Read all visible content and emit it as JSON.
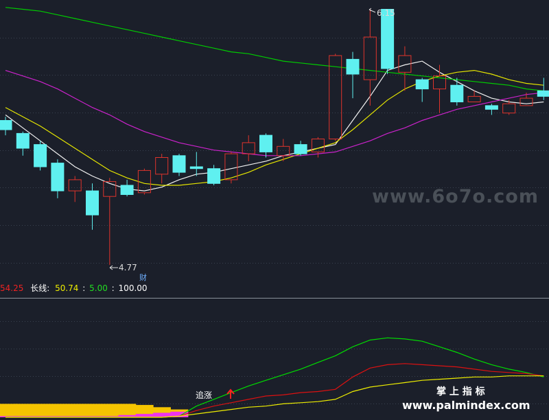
{
  "colors": {
    "background": "#1b1f2a",
    "grid": "#3a4250",
    "separator": "#8a909a",
    "up_candle": "#e0342c",
    "down_candle": "#5ff0f0",
    "ma_white": "#f2f2f2",
    "ma_yellow": "#e6e600",
    "ma_green": "#00cc00",
    "ma_magenta": "#cc22cc",
    "ind_green": "#00dd00",
    "ind_red": "#dd1111",
    "ind_yellow": "#eeee00",
    "volume_bar": "#f5c400",
    "volume_pink": "#ee33ee",
    "annotation": "#dddddd",
    "arrow": "#ff2020"
  },
  "price_panel": {
    "high_label": "6.15",
    "low_label": "4.77",
    "flag_char": "财"
  },
  "indicator_header": {
    "value1": "54.25",
    "label2": "长线:",
    "value2": "50.74",
    "value3": "5.00",
    "value4": "100.00"
  },
  "indicator_panel": {
    "signal_text": "追涨",
    "signal_icon": "up-arrow-icon"
  },
  "watermarks": {
    "site1": "www.6o7o.com",
    "brand": "掌 上 指 标",
    "site2": "www.palmindex.com"
  },
  "chart_data": [
    {
      "type": "candlestick",
      "title": "",
      "ylim": [
        4.7,
        6.2
      ],
      "grid": true,
      "annotations": [
        {
          "x": 21,
          "y": 6.15,
          "text": "6.15",
          "kind": "high"
        },
        {
          "x": 5,
          "y": 4.77,
          "text": "4.77",
          "kind": "low"
        }
      ],
      "candles": [
        {
          "x": 0,
          "open": 5.55,
          "close": 5.5,
          "high": 5.57,
          "low": 5.47
        },
        {
          "x": 1,
          "open": 5.48,
          "close": 5.4,
          "high": 5.49,
          "low": 5.36
        },
        {
          "x": 2,
          "open": 5.42,
          "close": 5.3,
          "high": 5.44,
          "low": 5.28
        },
        {
          "x": 3,
          "open": 5.32,
          "close": 5.17,
          "high": 5.34,
          "low": 5.13
        },
        {
          "x": 4,
          "open": 5.17,
          "close": 5.23,
          "high": 5.25,
          "low": 5.11
        },
        {
          "x": 5,
          "open": 5.17,
          "close": 5.04,
          "high": 5.21,
          "low": 4.96
        },
        {
          "x": 6,
          "open": 5.14,
          "close": 5.22,
          "high": 5.24,
          "low": 4.77
        },
        {
          "x": 7,
          "open": 5.2,
          "close": 5.15,
          "high": 5.23,
          "low": 5.14
        },
        {
          "x": 8,
          "open": 5.16,
          "close": 5.28,
          "high": 5.29,
          "low": 5.15
        },
        {
          "x": 9,
          "open": 5.26,
          "close": 5.35,
          "high": 5.37,
          "low": 5.21
        },
        {
          "x": 10,
          "open": 5.36,
          "close": 5.27,
          "high": 5.37,
          "low": 5.25
        },
        {
          "x": 11,
          "open": 5.3,
          "close": 5.29,
          "high": 5.38,
          "low": 5.25
        },
        {
          "x": 12,
          "open": 5.29,
          "close": 5.21,
          "high": 5.31,
          "low": 5.2
        },
        {
          "x": 13,
          "open": 5.23,
          "close": 5.37,
          "high": 5.38,
          "low": 5.21
        },
        {
          "x": 14,
          "open": 5.37,
          "close": 5.43,
          "high": 5.47,
          "low": 5.33
        },
        {
          "x": 15,
          "open": 5.47,
          "close": 5.38,
          "high": 5.48,
          "low": 5.35
        },
        {
          "x": 16,
          "open": 5.36,
          "close": 5.41,
          "high": 5.45,
          "low": 5.33
        },
        {
          "x": 17,
          "open": 5.42,
          "close": 5.37,
          "high": 5.44,
          "low": 5.36
        },
        {
          "x": 18,
          "open": 5.38,
          "close": 5.45,
          "high": 5.46,
          "low": 5.35
        },
        {
          "x": 19,
          "open": 5.45,
          "close": 5.9,
          "high": 5.91,
          "low": 5.44
        },
        {
          "x": 20,
          "open": 5.88,
          "close": 5.8,
          "high": 5.92,
          "low": 5.67
        },
        {
          "x": 21,
          "open": 5.77,
          "close": 6.0,
          "high": 6.15,
          "low": 5.63
        },
        {
          "x": 22,
          "open": 6.15,
          "close": 5.83,
          "high": 6.15,
          "low": 5.8
        },
        {
          "x": 23,
          "open": 5.81,
          "close": 5.9,
          "high": 5.95,
          "low": 5.71
        },
        {
          "x": 24,
          "open": 5.77,
          "close": 5.72,
          "high": 5.78,
          "low": 5.65
        },
        {
          "x": 25,
          "open": 5.72,
          "close": 5.79,
          "high": 5.85,
          "low": 5.59
        },
        {
          "x": 26,
          "open": 5.74,
          "close": 5.65,
          "high": 5.78,
          "low": 5.63
        },
        {
          "x": 27,
          "open": 5.65,
          "close": 5.68,
          "high": 5.71,
          "low": 5.65
        },
        {
          "x": 28,
          "open": 5.63,
          "close": 5.61,
          "high": 5.64,
          "low": 5.58
        },
        {
          "x": 29,
          "open": 5.59,
          "close": 5.64,
          "high": 5.66,
          "low": 5.58
        },
        {
          "x": 30,
          "open": 5.63,
          "close": 5.67,
          "high": 5.7,
          "low": 5.63
        },
        {
          "x": 31,
          "open": 5.71,
          "close": 5.68,
          "high": 5.78,
          "low": 5.66
        }
      ],
      "ma_lines": [
        {
          "color": "ma_white",
          "values": [
            5.58,
            5.51,
            5.44,
            5.37,
            5.3,
            5.25,
            5.21,
            5.18,
            5.17,
            5.19,
            5.23,
            5.26,
            5.27,
            5.29,
            5.31,
            5.33,
            5.36,
            5.38,
            5.4,
            5.42,
            5.55,
            5.68,
            5.82,
            5.85,
            5.87,
            5.81,
            5.76,
            5.71,
            5.67,
            5.65,
            5.64,
            5.65
          ]
        },
        {
          "color": "ma_yellow",
          "values": [
            5.62,
            5.57,
            5.52,
            5.46,
            5.4,
            5.34,
            5.28,
            5.24,
            5.21,
            5.2,
            5.2,
            5.21,
            5.22,
            5.24,
            5.27,
            5.31,
            5.34,
            5.37,
            5.4,
            5.43,
            5.5,
            5.58,
            5.66,
            5.72,
            5.76,
            5.79,
            5.81,
            5.82,
            5.8,
            5.77,
            5.75,
            5.74
          ]
        },
        {
          "color": "ma_green",
          "values": [
            6.16,
            6.15,
            6.14,
            6.12,
            6.1,
            6.08,
            6.06,
            6.04,
            6.02,
            6.0,
            5.98,
            5.96,
            5.94,
            5.92,
            5.91,
            5.89,
            5.87,
            5.86,
            5.85,
            5.84,
            5.83,
            5.82,
            5.81,
            5.8,
            5.79,
            5.78,
            5.77,
            5.76,
            5.75,
            5.74,
            5.72,
            5.71
          ]
        },
        {
          "color": "ma_magenta",
          "values": [
            5.82,
            5.79,
            5.76,
            5.72,
            5.67,
            5.62,
            5.58,
            5.53,
            5.49,
            5.46,
            5.43,
            5.41,
            5.39,
            5.38,
            5.37,
            5.36,
            5.36,
            5.36,
            5.37,
            5.38,
            5.41,
            5.44,
            5.48,
            5.51,
            5.55,
            5.58,
            5.61,
            5.63,
            5.65,
            5.67,
            5.69,
            5.7
          ]
        }
      ]
    },
    {
      "type": "line",
      "title": "",
      "ylim": [
        0,
        100
      ],
      "grid": true,
      "x": [
        0,
        1,
        2,
        3,
        4,
        5,
        6,
        7,
        8,
        9,
        10,
        11,
        12,
        13,
        14,
        15,
        16,
        17,
        18,
        19,
        20,
        21,
        22,
        23,
        24,
        25,
        26,
        27,
        28,
        29,
        30,
        31
      ],
      "series": [
        {
          "color": "ind_green",
          "values": [
            0,
            0,
            0,
            0,
            0,
            0,
            0,
            0,
            0,
            0,
            1,
            10,
            16,
            22,
            28,
            33,
            38,
            43,
            49,
            55,
            63,
            69,
            71,
            70,
            68,
            63,
            58,
            52,
            47,
            43,
            40,
            36
          ]
        },
        {
          "color": "ind_red",
          "values": [
            0,
            0,
            0,
            0,
            0,
            0,
            0,
            0,
            0,
            0,
            1,
            6,
            10,
            13,
            16,
            19,
            20,
            22,
            23,
            25,
            36,
            44,
            47,
            48,
            47,
            46,
            45,
            43,
            41,
            40,
            39,
            37
          ]
        },
        {
          "color": "ind_yellow",
          "values": [
            0,
            0,
            0,
            0,
            0,
            0,
            0,
            0,
            0,
            0,
            1,
            3,
            5,
            7,
            9,
            10,
            12,
            13,
            14,
            16,
            23,
            27,
            29,
            31,
            33,
            34,
            35,
            36,
            36,
            37,
            37,
            37
          ]
        }
      ],
      "bars": {
        "color": "volume_bar",
        "values": [
          12,
          12,
          12,
          12,
          12,
          12,
          12,
          12,
          11,
          9,
          7,
          0,
          0,
          0,
          0,
          0,
          0,
          0,
          0,
          0,
          0,
          0,
          0,
          0,
          0,
          0,
          0,
          0,
          0,
          0,
          0,
          0
        ]
      },
      "pink_bars": {
        "color": "volume_pink",
        "values": [
          1,
          1,
          1,
          1,
          1,
          1,
          1,
          2,
          3,
          4,
          5,
          0,
          0,
          0,
          0,
          0,
          0,
          0,
          0,
          0,
          0,
          0,
          0,
          0,
          0,
          0,
          0,
          0,
          0,
          0,
          0,
          0
        ]
      }
    }
  ]
}
